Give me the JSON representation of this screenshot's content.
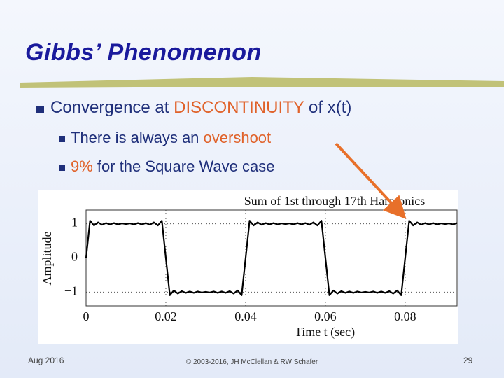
{
  "header": {
    "title": "Gibbs’ Phenomenon"
  },
  "bullets": [
    {
      "segments": [
        "Convergence at ",
        "DISCONTINUITY",
        " of x(t)"
      ],
      "sub": [
        {
          "segments": [
            "There is always an ",
            "overshoot"
          ]
        },
        {
          "segments": [
            "9%",
            " for the Square Wave case"
          ]
        }
      ]
    }
  ],
  "chart_data": {
    "type": "line",
    "title": "Sum of 1st through 17th Harmonics",
    "x_label": "Time t (sec)",
    "y_label": "Amplitude",
    "xlim": [
      0,
      0.093
    ],
    "ylim": [
      -1.4,
      1.4
    ],
    "xticks": [
      0,
      0.02,
      0.04,
      0.06,
      0.08
    ],
    "yticks": [
      1,
      0,
      {
        "value": -1,
        "label": "−1"
      }
    ],
    "grid": true,
    "x": [
      0,
      0.001,
      0.002,
      0.003,
      0.004,
      0.005,
      0.006,
      0.007,
      0.008,
      0.009,
      0.01,
      0.011,
      0.012,
      0.013,
      0.014,
      0.015,
      0.016,
      0.017,
      0.018,
      0.019,
      0.02,
      0.021,
      0.022,
      0.023,
      0.024,
      0.025,
      0.026,
      0.027,
      0.028,
      0.029,
      0.03,
      0.031,
      0.032,
      0.033,
      0.034,
      0.035,
      0.036,
      0.037,
      0.038,
      0.039,
      0.04,
      0.041,
      0.042,
      0.043,
      0.044,
      0.045,
      0.046,
      0.047,
      0.048,
      0.049,
      0.05,
      0.051,
      0.052,
      0.053,
      0.054,
      0.055,
      0.056,
      0.057,
      0.058,
      0.059,
      0.06,
      0.061,
      0.062,
      0.063,
      0.064,
      0.065,
      0.066,
      0.067,
      0.068,
      0.069,
      0.07,
      0.071,
      0.072,
      0.073,
      0.074,
      0.075,
      0.076,
      0.077,
      0.078,
      0.079,
      0.08,
      0.081,
      0.082,
      0.083,
      0.084,
      0.085,
      0.086,
      0.087,
      0.088,
      0.089,
      0.09,
      0.091,
      0.092,
      0.093
    ],
    "series": [
      {
        "color": "#000000",
        "values": [
          0,
          1.09,
          0.95,
          1.04,
          0.97,
          1.02,
          0.98,
          1.02,
          0.98,
          1.01,
          0.99,
          1.01,
          0.98,
          1.02,
          0.98,
          1.02,
          0.97,
          1.04,
          0.95,
          1.09,
          0,
          -1.09,
          -0.95,
          -1.04,
          -0.97,
          -1.02,
          -0.98,
          -1.02,
          -0.98,
          -1.01,
          -0.99,
          -1.01,
          -0.98,
          -1.02,
          -0.98,
          -1.02,
          -0.97,
          -1.04,
          -0.95,
          -1.09,
          0,
          1.09,
          0.95,
          1.04,
          0.97,
          1.02,
          0.98,
          1.02,
          0.98,
          1.01,
          0.99,
          1.01,
          0.98,
          1.02,
          0.98,
          1.02,
          0.97,
          1.04,
          0.95,
          1.09,
          0,
          -1.09,
          -0.95,
          -1.04,
          -0.97,
          -1.02,
          -0.98,
          -1.02,
          -0.98,
          -1.01,
          -0.99,
          -1.01,
          -0.98,
          -1.02,
          -0.98,
          -1.02,
          -0.97,
          -1.04,
          -0.95,
          -1.09,
          0,
          1.09,
          0.95,
          1.04,
          0.97,
          1.02,
          0.98,
          1.02,
          0.98,
          1.01,
          0.99,
          1.01,
          0.98,
          1.02
        ]
      }
    ]
  },
  "footer": {
    "date": "Aug 2016",
    "copyright": "© 2003-2016, JH McClellan & RW Schafer",
    "page": "29"
  }
}
